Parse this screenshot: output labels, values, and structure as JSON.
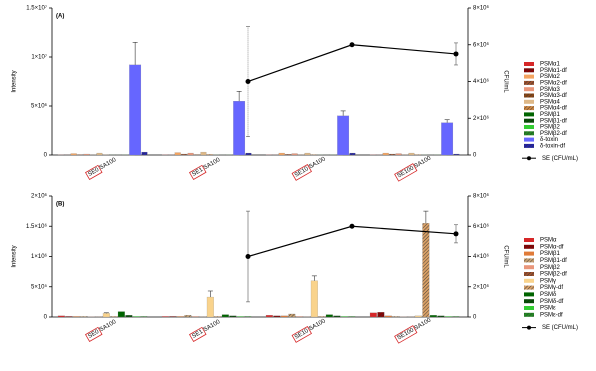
{
  "chart_data": [
    {
      "type": "bar",
      "panel_label": "(A)",
      "y_label": "Intensity",
      "y2_label": "CFU/mL",
      "categories": [
        "SE0 SA100",
        "SE1 SA100",
        "SE10 SA100",
        "SE100 SA100"
      ],
      "ylim": [
        0,
        15000000
      ],
      "yticks": [
        0,
        {
          "value": 5000000,
          "label": "5×10⁶"
        },
        {
          "value": 10000000,
          "label": "1×10⁷"
        },
        {
          "value": 15000000,
          "label": "1.5×10⁷"
        }
      ],
      "y2lim": [
        0,
        8000000
      ],
      "y2ticks": [
        0,
        {
          "value": 2000000,
          "label": "2×10⁶"
        },
        {
          "value": 4000000,
          "label": "4×10⁶"
        },
        {
          "value": 6000000,
          "label": "6×10⁶"
        },
        {
          "value": 8000000,
          "label": "8×10⁶"
        }
      ],
      "series": [
        {
          "name": "PSMα1",
          "color": "#d62728",
          "values": [
            20000,
            30000,
            30000,
            30000
          ]
        },
        {
          "name": "PSMα1-df",
          "color": "#8b0000",
          "pattern": "hatch",
          "values": [
            10000,
            20000,
            20000,
            20000
          ]
        },
        {
          "name": "PSMα2",
          "color": "#f4a460",
          "values": [
            150000,
            250000,
            200000,
            200000
          ]
        },
        {
          "name": "PSMα2-df",
          "color": "#a0522d",
          "pattern": "hatch",
          "values": [
            50000,
            100000,
            80000,
            100000
          ]
        },
        {
          "name": "PSMα3",
          "color": "#e9967a",
          "values": [
            100000,
            200000,
            150000,
            150000
          ]
        },
        {
          "name": "PSMα3-df",
          "color": "#8b4513",
          "pattern": "hatch",
          "values": [
            20000,
            50000,
            40000,
            40000
          ]
        },
        {
          "name": "PSMα4",
          "color": "#deb887",
          "values": [
            200000,
            300000,
            200000,
            200000
          ]
        },
        {
          "name": "PSMα4-df",
          "color": "#cd853f",
          "pattern": "hatch",
          "values": [
            30000,
            60000,
            50000,
            50000
          ]
        },
        {
          "name": "PSMβ1",
          "color": "#006400",
          "values": [
            10000,
            20000,
            20000,
            20000
          ]
        },
        {
          "name": "PSMβ1-df",
          "color": "#004d00",
          "pattern": "hatch",
          "values": [
            10000,
            10000,
            10000,
            10000
          ]
        },
        {
          "name": "PSMβ2",
          "color": "#32cd32",
          "values": [
            10000,
            10000,
            10000,
            10000
          ]
        },
        {
          "name": "PSMβ2-df",
          "color": "#228b22",
          "pattern": "hatch",
          "values": [
            10000,
            10000,
            10000,
            10000
          ]
        },
        {
          "name": "δ-toxin",
          "color": "#6666ff",
          "values": [
            9200000,
            5500000,
            4000000,
            3300000
          ],
          "errors": [
            2300000,
            1000000,
            500000,
            300000
          ]
        },
        {
          "name": "δ-toxin-df",
          "color": "#2222aa",
          "pattern": "hatch",
          "values": [
            300000,
            200000,
            200000,
            100000
          ]
        },
        {
          "name": "SE (CFU/mL)",
          "color": "#000000",
          "axis": "y2",
          "type": "line",
          "values": [
            null,
            4000000,
            6000000,
            5500000
          ],
          "errors": [
            null,
            3000000,
            null,
            600000
          ]
        }
      ]
    },
    {
      "type": "bar",
      "panel_label": "(B)",
      "y_label": "Intensity",
      "y2_label": "CFU/mL",
      "categories": [
        "SE0 SA100",
        "SE1 SA100",
        "SE10 SA100",
        "SE100 SA100"
      ],
      "ylim": [
        0,
        2000000
      ],
      "yticks": [
        0,
        {
          "value": 500000,
          "label": "5×10⁵"
        },
        {
          "value": 1000000,
          "label": "1×10⁶"
        },
        {
          "value": 1500000,
          "label": "1.5×10⁶"
        },
        {
          "value": 2000000,
          "label": "2×10⁶"
        }
      ],
      "y2lim": [
        0,
        8000000
      ],
      "y2ticks": [
        0,
        {
          "value": 2000000,
          "label": "2×10⁶"
        },
        {
          "value": 4000000,
          "label": "4×10⁶"
        },
        {
          "value": 6000000,
          "label": "6×10⁶"
        },
        {
          "value": 8000000,
          "label": "8×10⁶"
        }
      ],
      "series": [
        {
          "name": "PSMα",
          "color": "#d62728",
          "values": [
            20000,
            10000,
            30000,
            70000
          ]
        },
        {
          "name": "PSMα-df",
          "color": "#8b0000",
          "pattern": "hatch",
          "values": [
            10000,
            10000,
            20000,
            80000
          ]
        },
        {
          "name": "PSMβ1",
          "color": "#e07b39",
          "values": [
            10000,
            10000,
            20000,
            20000
          ]
        },
        {
          "name": "PSMβ1-df",
          "color": "#c8a070",
          "pattern": "hatch",
          "values": [
            10000,
            30000,
            50000,
            10000
          ]
        },
        {
          "name": "PSMβ2",
          "color": "#e9967a",
          "values": [
            5000,
            10000,
            10000,
            5000
          ]
        },
        {
          "name": "PSMβ2-df",
          "color": "#a0522d",
          "pattern": "hatch",
          "values": [
            5000,
            5000,
            5000,
            5000
          ]
        },
        {
          "name": "PSMγ",
          "color": "#f9d38c",
          "values": [
            60000,
            330000,
            600000,
            20000
          ],
          "errors": [
            10000,
            100000,
            80000,
            null
          ]
        },
        {
          "name": "PSMγ-df",
          "color": "#d9a066",
          "pattern": "hatch",
          "values": [
            10000,
            10000,
            10000,
            1550000
          ],
          "errors": [
            null,
            null,
            null,
            200000
          ]
        },
        {
          "name": "PSMδ",
          "color": "#006400",
          "values": [
            90000,
            40000,
            40000,
            30000
          ]
        },
        {
          "name": "PSMδ-df",
          "color": "#004d00",
          "pattern": "hatch",
          "values": [
            30000,
            20000,
            20000,
            20000
          ]
        },
        {
          "name": "PSMε",
          "color": "#32cd32",
          "values": [
            10000,
            10000,
            10000,
            10000
          ]
        },
        {
          "name": "PSMε-df",
          "color": "#228b22",
          "pattern": "hatch",
          "values": [
            10000,
            10000,
            10000,
            10000
          ]
        },
        {
          "name": "SE (CFU/mL)",
          "color": "#000000",
          "axis": "y2",
          "type": "line",
          "values": [
            null,
            4000000,
            6000000,
            5500000
          ],
          "errors": [
            null,
            3000000,
            null,
            600000
          ]
        }
      ]
    }
  ]
}
